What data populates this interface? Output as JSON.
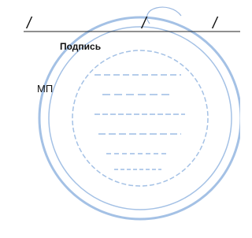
{
  "signature_line": {
    "separators": [
      "/",
      "/",
      "/"
    ],
    "caption": "Подпись"
  },
  "stamp_label": "МП"
}
